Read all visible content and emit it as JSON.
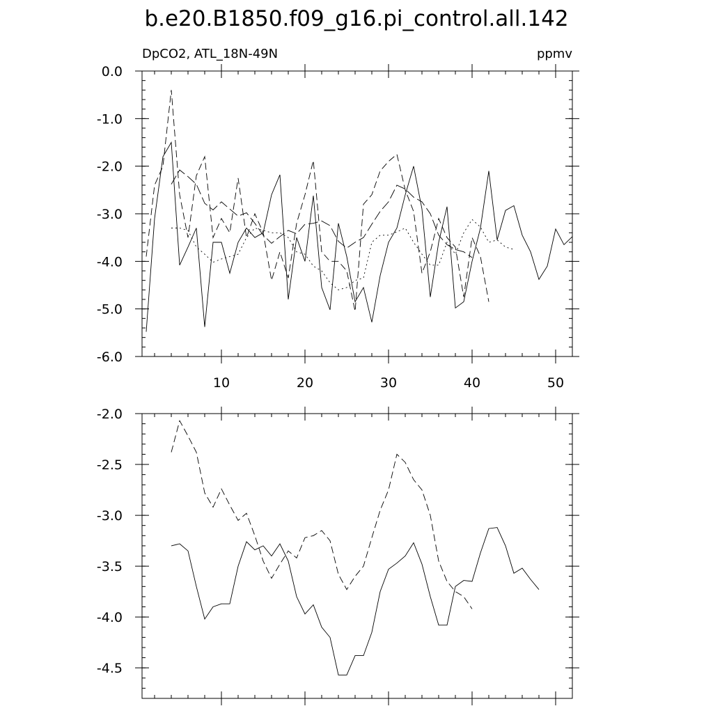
{
  "figure": {
    "title": "b.e20.B1850.f09_g16.pi_control.all.142",
    "left_label": "DpCO2, ATL_18N-49N",
    "right_label": "ppmv"
  },
  "chart_data": [
    {
      "type": "line",
      "xlim": [
        0.5,
        52
      ],
      "ylim": [
        -6.0,
        0.0
      ],
      "xticks": [
        10,
        20,
        30,
        40,
        50
      ],
      "xtick_labels": [
        "10",
        "20",
        "30",
        "40",
        "50"
      ],
      "yticks": [
        0.0,
        -1.0,
        -2.0,
        -3.0,
        -4.0,
        -5.0,
        -6.0
      ],
      "ytick_labels": [
        "0.0",
        "-1.0",
        "-2.0",
        "-3.0",
        "-4.0",
        "-5.0",
        "-6.0"
      ],
      "series": [
        {
          "style": "solid",
          "x_start": 1,
          "values": [
            -5.48,
            -3.1,
            -1.8,
            -1.5,
            -4.08,
            -3.7,
            -3.3,
            -5.38,
            -3.6,
            -3.6,
            -4.25,
            -3.6,
            -3.3,
            -3.5,
            -3.4,
            -2.6,
            -2.18,
            -4.8,
            -3.5,
            -4.0,
            -2.62,
            -4.55,
            -5.02,
            -3.2,
            -3.9,
            -4.85,
            -4.55,
            -5.28,
            -4.3,
            -3.6,
            -3.3,
            -2.6,
            -2.0,
            -2.9,
            -4.75,
            -3.6,
            -2.85,
            -4.98,
            -4.85,
            -4.0,
            -3.3,
            -2.1,
            -3.55,
            -2.93,
            -2.83,
            -3.45,
            -3.8,
            -4.38,
            -4.1,
            -3.32,
            -3.65,
            -3.48
          ]
        },
        {
          "style": "dash",
          "x_start": 1,
          "values": [
            -3.9,
            -2.4,
            -2.0,
            -0.4,
            -2.6,
            -3.5,
            -2.2,
            -1.8,
            -3.5,
            -3.1,
            -3.4,
            -2.25,
            -3.5,
            -3.0,
            -3.4,
            -4.4,
            -3.8,
            -4.35,
            -3.2,
            -2.6,
            -1.88,
            -3.8,
            -4.0,
            -4.0,
            -4.2,
            -5.05,
            -2.8,
            -2.6,
            -2.1,
            -1.9,
            -1.75,
            -2.5,
            -2.95,
            -4.25,
            -3.8,
            -3.1,
            -3.5,
            -3.7,
            -4.75,
            -3.5,
            -3.9,
            -4.85
          ]
        },
        {
          "style": "dash-long",
          "x_start": 4,
          "values": [
            -2.38,
            -2.08,
            -2.22,
            -2.38,
            -2.78,
            -2.92,
            -2.75,
            -2.9,
            -3.05,
            -2.98,
            -3.2,
            -3.45,
            -3.62,
            -3.48,
            -3.35,
            -3.42,
            -3.22,
            -3.2,
            -3.15,
            -3.25,
            -3.58,
            -3.72,
            -3.6,
            -3.5,
            -3.22,
            -2.95,
            -2.75,
            -2.4,
            -2.48,
            -2.65,
            -2.75,
            -3.0,
            -3.45,
            -3.65,
            -3.75,
            -3.8,
            -3.92
          ]
        },
        {
          "style": "dot",
          "x_start": 4,
          "values": [
            -3.3,
            -3.3,
            -3.35,
            -3.7,
            -3.85,
            -4.02,
            -3.95,
            -3.9,
            -3.85,
            -3.5,
            -3.3,
            -3.35,
            -3.4,
            -3.4,
            -3.5,
            -3.8,
            -3.85,
            -4.1,
            -4.2,
            -4.45,
            -4.6,
            -4.55,
            -4.4,
            -4.35,
            -3.6,
            -3.45,
            -3.45,
            -3.38,
            -3.3,
            -3.6,
            -3.85,
            -4.08,
            -4.08,
            -3.6,
            -3.85,
            -3.4,
            -3.12,
            -3.28,
            -3.6,
            -3.55,
            -3.7,
            -3.75
          ]
        }
      ]
    },
    {
      "type": "line",
      "xlim": [
        0.5,
        52
      ],
      "ylim": [
        -4.8,
        -2.0
      ],
      "xticks": [
        10,
        20,
        30,
        40,
        50
      ],
      "yticks": [
        -2.0,
        -2.5,
        -3.0,
        -3.5,
        -4.0,
        -4.5
      ],
      "ytick_labels": [
        "-2.0",
        "-2.5",
        "-3.0",
        "-3.5",
        "-4.0",
        "-4.5"
      ],
      "series": [
        {
          "style": "solid",
          "x_start": 4,
          "values": [
            -3.3,
            -3.28,
            -3.35,
            -3.7,
            -4.02,
            -3.9,
            -3.87,
            -3.87,
            -3.5,
            -3.26,
            -3.34,
            -3.3,
            -3.4,
            -3.28,
            -3.45,
            -3.8,
            -3.97,
            -3.88,
            -4.1,
            -4.2,
            -4.57,
            -4.57,
            -4.38,
            -4.38,
            -4.15,
            -3.75,
            -3.53,
            -3.47,
            -3.4,
            -3.27,
            -3.48,
            -3.8,
            -4.08,
            -4.08,
            -3.7,
            -3.64,
            -3.65,
            -3.37,
            -3.13,
            -3.12,
            -3.3,
            -3.57,
            -3.52,
            -3.63,
            -3.73
          ]
        },
        {
          "style": "dash",
          "x_start": 4,
          "values": [
            -2.38,
            -2.07,
            -2.22,
            -2.38,
            -2.78,
            -2.92,
            -2.74,
            -2.9,
            -3.05,
            -2.98,
            -3.2,
            -3.45,
            -3.62,
            -3.48,
            -3.35,
            -3.42,
            -3.22,
            -3.2,
            -3.15,
            -3.25,
            -3.58,
            -3.73,
            -3.6,
            -3.5,
            -3.22,
            -2.95,
            -2.75,
            -2.4,
            -2.48,
            -2.65,
            -2.75,
            -3.0,
            -3.45,
            -3.65,
            -3.75,
            -3.8,
            -3.92
          ]
        }
      ]
    }
  ]
}
